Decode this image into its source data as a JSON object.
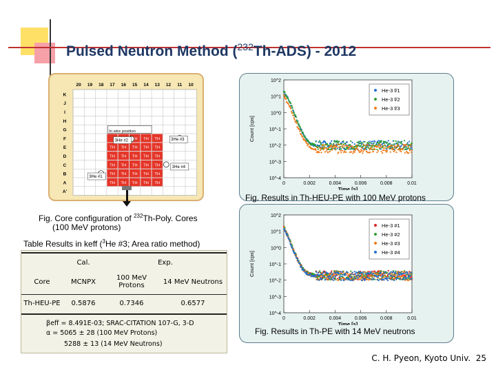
{
  "slide": {
    "title_main": "Pulsed Neutron Method (",
    "title_sup": "232",
    "title_tail": "Th-ADS) - 2012",
    "footer_author": "C. H. Pyeon, Kyoto Univ.",
    "page_number": "25"
  },
  "core_map": {
    "col_labels": [
      "20",
      "19",
      "18",
      "17",
      "16",
      "15",
      "14",
      "13",
      "12",
      "11",
      "10"
    ],
    "row_labels": [
      "K",
      "J",
      "I",
      "H",
      "G",
      "F",
      "E",
      "D",
      "C",
      "B",
      "A",
      "A'"
    ],
    "cell_text": "TH",
    "in_wire_position": "In wire position",
    "detectors": {
      "d1": "3He #1",
      "d2": "3He #2",
      "d3": "3He #3",
      "d4": "3He #4"
    }
  },
  "captions": {
    "core_line1_pre": "Fig. Core configuration of ",
    "core_line1_sup": "232",
    "core_line1_post": "Th-Poly. Cores",
    "core_line2": "(100 MeV protons)",
    "table_pre": "Table Results in keff (",
    "table_sup": "3",
    "table_post": "He #3; Area ratio method)",
    "plot1": "Fig. Results in Th-HEU-PE with 100 MeV protons",
    "plot2": "Fig. Results in Th-PE with 14 MeV neutrons"
  },
  "table": {
    "header_cal": "Cal.",
    "header_exp": "Exp.",
    "sub_core": "Core",
    "sub_mcnpx": "MCNPX",
    "sub_100": "100 MeV Protons",
    "sub_14": "14 MeV Neutrons",
    "row_core": "Th-HEU-PE",
    "row_mcnpx": "0.5876",
    "row_100": "0.7346",
    "row_14": "0.6577"
  },
  "notes": {
    "line1": "βeff = 8.491E-03; SRAC-CITATION 107-G, 3-D",
    "line2": "α = 5065 ± 28 (100 MeV Protons)",
    "line3": "5288 ± 13 (14 MeV Neutrons)"
  },
  "chart_data": [
    {
      "type": "scatter",
      "title": "",
      "xlabel": "Time [s]",
      "ylabel": "Count [cps]",
      "xlim": [
        0,
        0.01
      ],
      "ylim": [
        0.0001,
        100
      ],
      "yscale": "log",
      "x_ticks": [
        "0",
        "0.002",
        "0.004",
        "0.006",
        "0.008",
        "0.01"
      ],
      "y_ticks": [
        "10^2",
        "10^1",
        "10^0",
        "10^-1",
        "10^-2",
        "10^-3",
        "10^-4"
      ],
      "legend_position": "top-right",
      "series": [
        {
          "name": "He-3 f/1",
          "color": "#1f6fd0",
          "x": [
            0,
            0.0003,
            0.0006,
            0.0009,
            0.0012,
            0.0015,
            0.0018,
            0.0021,
            0.0024,
            0.003,
            0.004,
            0.005,
            0.006,
            0.007,
            0.008,
            0.009,
            0.01
          ],
          "y": [
            20,
            8,
            2.5,
            0.6,
            0.15,
            0.05,
            0.02,
            0.012,
            0.01,
            0.01,
            0.01,
            0.01,
            0.01,
            0.01,
            0.01,
            0.01,
            0.01
          ]
        },
        {
          "name": "He-3 f/2",
          "color": "#2ea02e",
          "x": [
            0,
            0.0003,
            0.0006,
            0.0009,
            0.0012,
            0.0015,
            0.0018,
            0.0021,
            0.0024,
            0.003,
            0.004,
            0.005,
            0.006,
            0.007,
            0.008,
            0.009,
            0.01
          ],
          "y": [
            20,
            8,
            2.5,
            0.6,
            0.15,
            0.05,
            0.02,
            0.012,
            0.01,
            0.01,
            0.01,
            0.01,
            0.01,
            0.01,
            0.01,
            0.01,
            0.01
          ]
        },
        {
          "name": "He-3 f/3",
          "color": "#f07a18",
          "x": [
            0,
            0.0003,
            0.0006,
            0.0009,
            0.0012,
            0.0015,
            0.0018,
            0.0021,
            0.0024,
            0.003,
            0.004,
            0.005,
            0.006,
            0.007,
            0.008,
            0.009,
            0.01
          ],
          "y": [
            10,
            4,
            1.2,
            0.3,
            0.08,
            0.025,
            0.012,
            0.007,
            0.006,
            0.006,
            0.006,
            0.006,
            0.006,
            0.006,
            0.006,
            0.006,
            0.006
          ]
        }
      ]
    },
    {
      "type": "scatter",
      "title": "",
      "xlabel": "Time [s]",
      "ylabel": "Count [cps]",
      "xlim": [
        0,
        0.01
      ],
      "ylim": [
        0.0001,
        100
      ],
      "yscale": "log",
      "x_ticks": [
        "0",
        "0.002",
        "0.004",
        "0.006",
        "0.008",
        "0.01"
      ],
      "y_ticks": [
        "10^2",
        "10^1",
        "10^0",
        "10^-1",
        "10^-2",
        "10^-3",
        "10^-4"
      ],
      "legend_position": "top-right",
      "series": [
        {
          "name": "He-3 #1",
          "color": "#e02020",
          "x": [
            0,
            0.0003,
            0.0006,
            0.0009,
            0.0012,
            0.0015,
            0.0018,
            0.0021,
            0.0024,
            0.003,
            0.004,
            0.005,
            0.006,
            0.007,
            0.008,
            0.009,
            0.01
          ],
          "y": [
            20,
            6,
            1.5,
            0.4,
            0.12,
            0.05,
            0.03,
            0.025,
            0.02,
            0.02,
            0.02,
            0.02,
            0.02,
            0.02,
            0.02,
            0.02,
            0.02
          ]
        },
        {
          "name": "He-3 #2",
          "color": "#2ea02e",
          "x": [
            0,
            0.0003,
            0.0006,
            0.0009,
            0.0012,
            0.0015,
            0.0018,
            0.0021,
            0.0024,
            0.003,
            0.004,
            0.005,
            0.006,
            0.007,
            0.008,
            0.009,
            0.01
          ],
          "y": [
            20,
            6,
            1.5,
            0.4,
            0.12,
            0.05,
            0.03,
            0.025,
            0.02,
            0.02,
            0.02,
            0.02,
            0.02,
            0.02,
            0.02,
            0.02,
            0.02
          ]
        },
        {
          "name": "He-3 #3",
          "color": "#f07a18",
          "x": [
            0,
            0.0003,
            0.0006,
            0.0009,
            0.0012,
            0.0015,
            0.0018,
            0.0021,
            0.0024,
            0.003,
            0.004,
            0.005,
            0.006,
            0.007,
            0.008,
            0.009,
            0.01
          ],
          "y": [
            15,
            5,
            1.2,
            0.35,
            0.1,
            0.04,
            0.025,
            0.02,
            0.018,
            0.018,
            0.018,
            0.018,
            0.018,
            0.018,
            0.018,
            0.018,
            0.018
          ]
        },
        {
          "name": "He-3 #4",
          "color": "#1f6fd0",
          "x": [
            0,
            0.0003,
            0.0006,
            0.0009,
            0.0012,
            0.0015,
            0.0018,
            0.0021,
            0.0024,
            0.003,
            0.004,
            0.005,
            0.006,
            0.007,
            0.008,
            0.009,
            0.01
          ],
          "y": [
            15,
            5,
            1.2,
            0.35,
            0.1,
            0.04,
            0.025,
            0.02,
            0.018,
            0.018,
            0.018,
            0.018,
            0.018,
            0.018,
            0.018,
            0.018,
            0.018
          ]
        }
      ]
    }
  ]
}
